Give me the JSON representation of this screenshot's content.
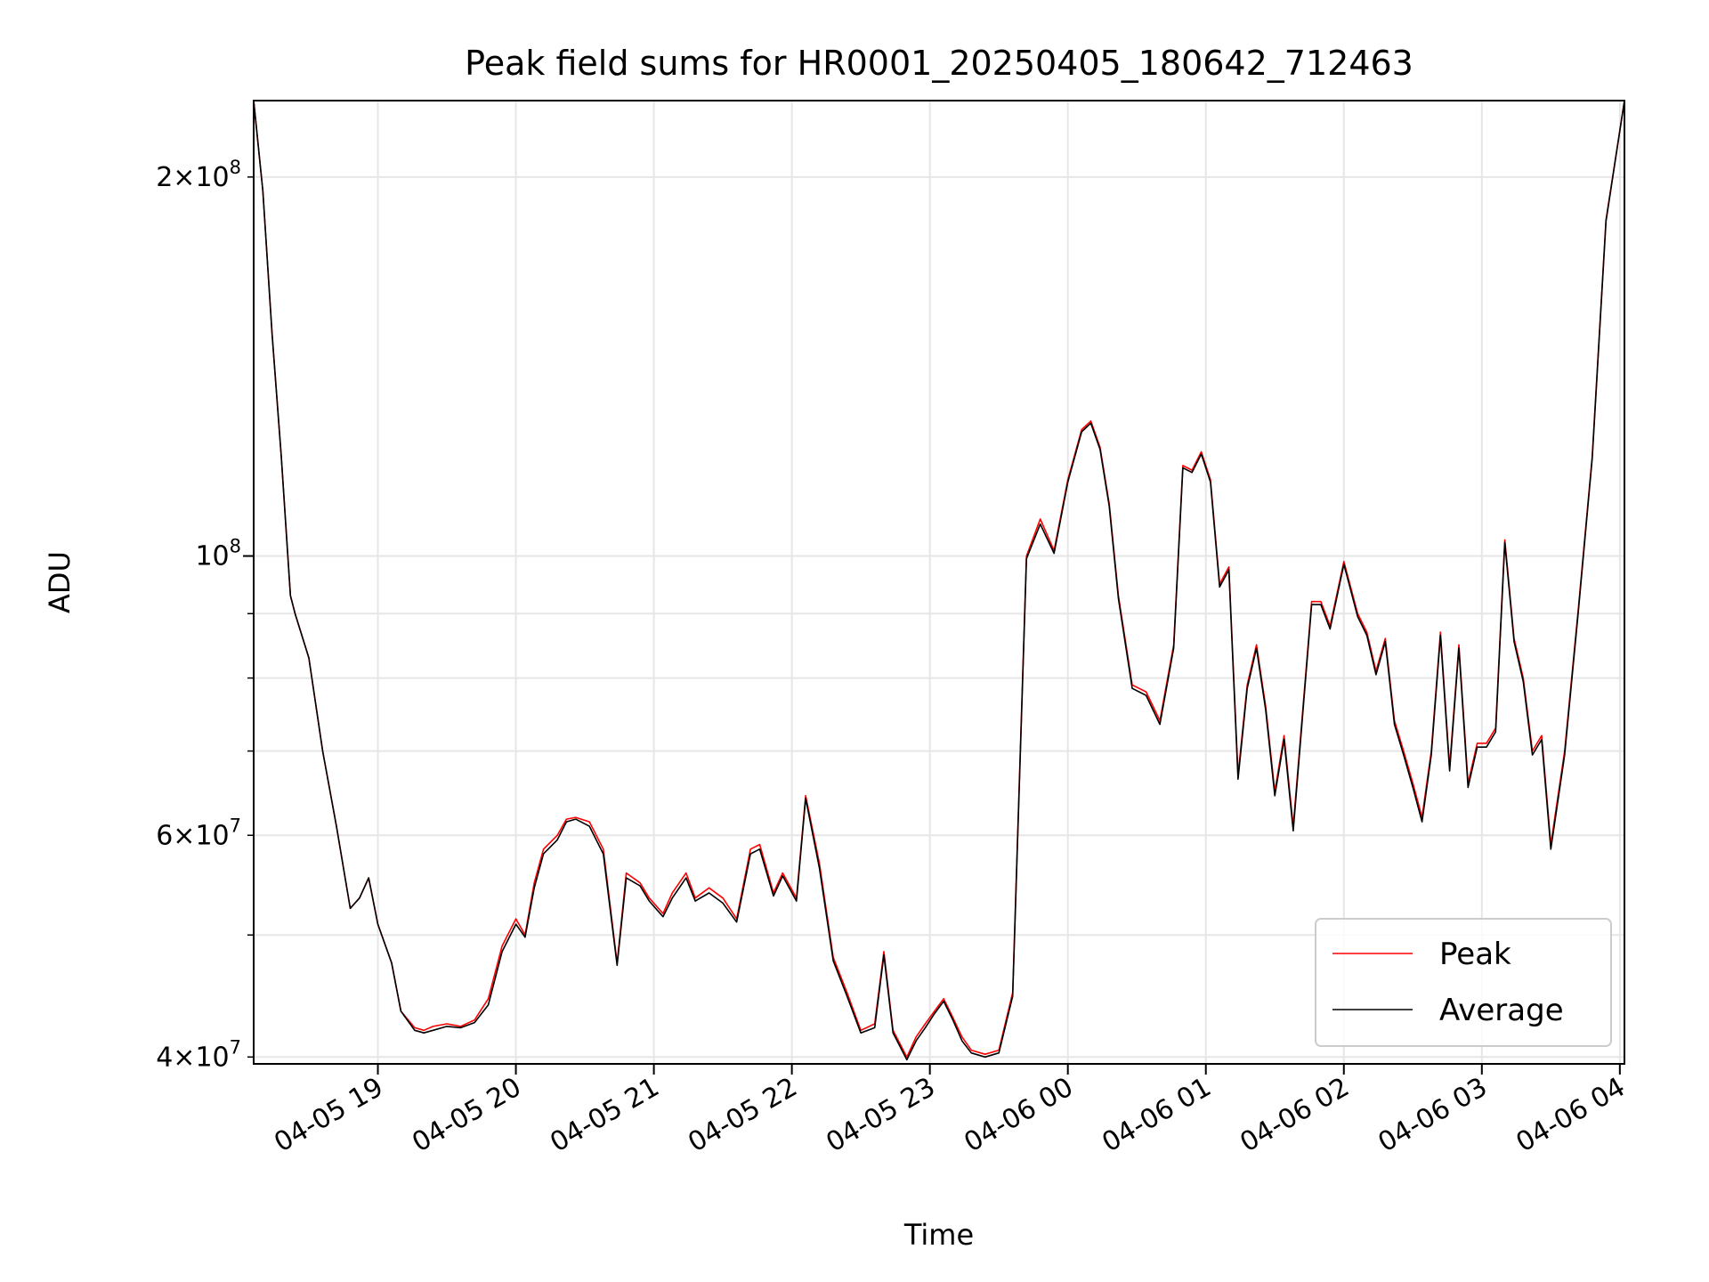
{
  "chart_data": {
    "type": "line",
    "title": "Peak field sums for HR0001_20250405_180642_712463",
    "xlabel": "Time",
    "ylabel": "ADU",
    "y_scale": "log",
    "ylim": [
      39500000,
      230000000
    ],
    "xlim": [
      "2025-04-05 18:06",
      "2025-04-06 04:02"
    ],
    "grid": true,
    "legend_position": "lower right",
    "x_ticks": [
      "04-05 19",
      "04-05 20",
      "04-05 21",
      "04-05 22",
      "04-05 23",
      "04-06 00",
      "04-06 01",
      "04-06 02",
      "04-06 03",
      "04-06 04"
    ],
    "y_ticks_major": [
      {
        "value": 100000000,
        "label_base": "10",
        "label_exp": "8"
      }
    ],
    "y_ticks_minor_labeled": [
      {
        "value": 40000000,
        "label_mant": "4",
        "label_base": "10",
        "label_exp": "7"
      },
      {
        "value": 60000000,
        "label_mant": "6",
        "label_base": "10",
        "label_exp": "7"
      },
      {
        "value": 200000000,
        "label_mant": "2",
        "label_base": "10",
        "label_exp": "8"
      }
    ],
    "y_ticks_minor_unlabeled": [
      50000000,
      70000000,
      80000000,
      90000000
    ],
    "series": [
      {
        "name": "Peak",
        "color": "#ff0000",
        "x": [
          "2025-04-05 18:06",
          "2025-04-05 18:10",
          "2025-04-05 18:14",
          "2025-04-05 18:18",
          "2025-04-05 18:22",
          "2025-04-05 18:24",
          "2025-04-05 18:30",
          "2025-04-05 18:36",
          "2025-04-05 18:42",
          "2025-04-05 18:48",
          "2025-04-05 18:52",
          "2025-04-05 18:56",
          "2025-04-05 19:00",
          "2025-04-05 19:06",
          "2025-04-05 19:10",
          "2025-04-05 19:16",
          "2025-04-05 19:20",
          "2025-04-05 19:24",
          "2025-04-05 19:30",
          "2025-04-05 19:36",
          "2025-04-05 19:42",
          "2025-04-05 19:48",
          "2025-04-05 19:54",
          "2025-04-05 20:00",
          "2025-04-05 20:04",
          "2025-04-05 20:08",
          "2025-04-05 20:12",
          "2025-04-05 20:18",
          "2025-04-05 20:22",
          "2025-04-05 20:26",
          "2025-04-05 20:32",
          "2025-04-05 20:38",
          "2025-04-05 20:44",
          "2025-04-05 20:48",
          "2025-04-05 20:54",
          "2025-04-05 20:58",
          "2025-04-05 21:04",
          "2025-04-05 21:08",
          "2025-04-05 21:14",
          "2025-04-05 21:18",
          "2025-04-05 21:24",
          "2025-04-05 21:30",
          "2025-04-05 21:36",
          "2025-04-05 21:42",
          "2025-04-05 21:46",
          "2025-04-05 21:52",
          "2025-04-05 21:56",
          "2025-04-05 22:02",
          "2025-04-05 22:06",
          "2025-04-05 22:12",
          "2025-04-05 22:18",
          "2025-04-05 22:24",
          "2025-04-05 22:30",
          "2025-04-05 22:36",
          "2025-04-05 22:40",
          "2025-04-05 22:44",
          "2025-04-05 22:50",
          "2025-04-05 22:54",
          "2025-04-05 22:58",
          "2025-04-05 23:02",
          "2025-04-05 23:06",
          "2025-04-05 23:10",
          "2025-04-05 23:14",
          "2025-04-05 23:18",
          "2025-04-05 23:24",
          "2025-04-05 23:30",
          "2025-04-05 23:36",
          "2025-04-05 23:42",
          "2025-04-05 23:48",
          "2025-04-05 23:54",
          "2025-04-06 00:00",
          "2025-04-06 00:06",
          "2025-04-06 00:10",
          "2025-04-06 00:14",
          "2025-04-06 00:18",
          "2025-04-06 00:22",
          "2025-04-06 00:28",
          "2025-04-06 00:34",
          "2025-04-06 00:40",
          "2025-04-06 00:46",
          "2025-04-06 00:50",
          "2025-04-06 00:54",
          "2025-04-06 00:58",
          "2025-04-06 01:02",
          "2025-04-06 01:06",
          "2025-04-06 01:10",
          "2025-04-06 01:14",
          "2025-04-06 01:18",
          "2025-04-06 01:22",
          "2025-04-06 01:26",
          "2025-04-06 01:30",
          "2025-04-06 01:34",
          "2025-04-06 01:38",
          "2025-04-06 01:42",
          "2025-04-06 01:46",
          "2025-04-06 01:50",
          "2025-04-06 01:54",
          "2025-04-06 02:00",
          "2025-04-06 02:06",
          "2025-04-06 02:10",
          "2025-04-06 02:14",
          "2025-04-06 02:18",
          "2025-04-06 02:22",
          "2025-04-06 02:26",
          "2025-04-06 02:30",
          "2025-04-06 02:34",
          "2025-04-06 02:38",
          "2025-04-06 02:42",
          "2025-04-06 02:46",
          "2025-04-06 02:50",
          "2025-04-06 02:54",
          "2025-04-06 02:58",
          "2025-04-06 03:02",
          "2025-04-06 03:06",
          "2025-04-06 03:10",
          "2025-04-06 03:14",
          "2025-04-06 03:18",
          "2025-04-06 03:22",
          "2025-04-06 03:26",
          "2025-04-06 03:30",
          "2025-04-06 03:36",
          "2025-04-06 03:42",
          "2025-04-06 03:48",
          "2025-04-06 03:54",
          "2025-04-06 04:02"
        ],
        "y": [
          230000000,
          195000000,
          150000000,
          120000000,
          93000000,
          90000000,
          83000000,
          70000000,
          61000000,
          52500000,
          53500000,
          55500000,
          51000000,
          47500000,
          43500000,
          42200000,
          42000000,
          42300000,
          42500000,
          42300000,
          42800000,
          44500000,
          49000000,
          51500000,
          50000000,
          55000000,
          58500000,
          60000000,
          61800000,
          62000000,
          61500000,
          58500000,
          47500000,
          56000000,
          55000000,
          53500000,
          52000000,
          54000000,
          56000000,
          53500000,
          54500000,
          53500000,
          51500000,
          58500000,
          59000000,
          54000000,
          56000000,
          53500000,
          64500000,
          57000000,
          48000000,
          45000000,
          42000000,
          42500000,
          48500000,
          42000000,
          40000000,
          41500000,
          42500000,
          43500000,
          44500000,
          43000000,
          41500000,
          40500000,
          40200000,
          40500000,
          45000000,
          100000000,
          107000000,
          101000000,
          115000000,
          126000000,
          128000000,
          122000000,
          110000000,
          93000000,
          79000000,
          78000000,
          74000000,
          85000000,
          118000000,
          117000000,
          121000000,
          115000000,
          95000000,
          98000000,
          67000000,
          79000000,
          85000000,
          76000000,
          65000000,
          72000000,
          61000000,
          75000000,
          92000000,
          92000000,
          88000000,
          99000000,
          90000000,
          87000000,
          81000000,
          86000000,
          74000000,
          70000000,
          66000000,
          62000000,
          70000000,
          87000000,
          68000000,
          85000000,
          66000000,
          71000000,
          71000000,
          73000000,
          103000000,
          86000000,
          80000000,
          70000000,
          72000000,
          59000000,
          70000000,
          91000000,
          120000000,
          185000000,
          230000000
        ]
      },
      {
        "name": "Average",
        "color": "#000000",
        "x": [
          "2025-04-05 18:06",
          "2025-04-05 18:10",
          "2025-04-05 18:14",
          "2025-04-05 18:18",
          "2025-04-05 18:22",
          "2025-04-05 18:24",
          "2025-04-05 18:30",
          "2025-04-05 18:36",
          "2025-04-05 18:42",
          "2025-04-05 18:48",
          "2025-04-05 18:52",
          "2025-04-05 18:56",
          "2025-04-05 19:00",
          "2025-04-05 19:06",
          "2025-04-05 19:10",
          "2025-04-05 19:16",
          "2025-04-05 19:20",
          "2025-04-05 19:24",
          "2025-04-05 19:30",
          "2025-04-05 19:36",
          "2025-04-05 19:42",
          "2025-04-05 19:48",
          "2025-04-05 19:54",
          "2025-04-05 20:00",
          "2025-04-05 20:04",
          "2025-04-05 20:08",
          "2025-04-05 20:12",
          "2025-04-05 20:18",
          "2025-04-05 20:22",
          "2025-04-05 20:26",
          "2025-04-05 20:32",
          "2025-04-05 20:38",
          "2025-04-05 20:44",
          "2025-04-05 20:48",
          "2025-04-05 20:54",
          "2025-04-05 20:58",
          "2025-04-05 21:04",
          "2025-04-05 21:08",
          "2025-04-05 21:14",
          "2025-04-05 21:18",
          "2025-04-05 21:24",
          "2025-04-05 21:30",
          "2025-04-05 21:36",
          "2025-04-05 21:42",
          "2025-04-05 21:46",
          "2025-04-05 21:52",
          "2025-04-05 21:56",
          "2025-04-05 22:02",
          "2025-04-05 22:06",
          "2025-04-05 22:12",
          "2025-04-05 22:18",
          "2025-04-05 22:24",
          "2025-04-05 22:30",
          "2025-04-05 22:36",
          "2025-04-05 22:40",
          "2025-04-05 22:44",
          "2025-04-05 22:50",
          "2025-04-05 22:54",
          "2025-04-05 22:58",
          "2025-04-05 23:02",
          "2025-04-05 23:06",
          "2025-04-05 23:10",
          "2025-04-05 23:14",
          "2025-04-05 23:18",
          "2025-04-05 23:24",
          "2025-04-05 23:30",
          "2025-04-05 23:36",
          "2025-04-05 23:42",
          "2025-04-05 23:48",
          "2025-04-05 23:54",
          "2025-04-06 00:00",
          "2025-04-06 00:06",
          "2025-04-06 00:10",
          "2025-04-06 00:14",
          "2025-04-06 00:18",
          "2025-04-06 00:22",
          "2025-04-06 00:28",
          "2025-04-06 00:34",
          "2025-04-06 00:40",
          "2025-04-06 00:46",
          "2025-04-06 00:50",
          "2025-04-06 00:54",
          "2025-04-06 00:58",
          "2025-04-06 01:02",
          "2025-04-06 01:06",
          "2025-04-06 01:10",
          "2025-04-06 01:14",
          "2025-04-06 01:18",
          "2025-04-06 01:22",
          "2025-04-06 01:26",
          "2025-04-06 01:30",
          "2025-04-06 01:34",
          "2025-04-06 01:38",
          "2025-04-06 01:42",
          "2025-04-06 01:46",
          "2025-04-06 01:50",
          "2025-04-06 01:54",
          "2025-04-06 02:00",
          "2025-04-06 02:06",
          "2025-04-06 02:10",
          "2025-04-06 02:14",
          "2025-04-06 02:18",
          "2025-04-06 02:22",
          "2025-04-06 02:26",
          "2025-04-06 02:30",
          "2025-04-06 02:34",
          "2025-04-06 02:38",
          "2025-04-06 02:42",
          "2025-04-06 02:46",
          "2025-04-06 02:50",
          "2025-04-06 02:54",
          "2025-04-06 02:58",
          "2025-04-06 03:02",
          "2025-04-06 03:06",
          "2025-04-06 03:10",
          "2025-04-06 03:14",
          "2025-04-06 03:18",
          "2025-04-06 03:22",
          "2025-04-06 03:26",
          "2025-04-06 03:30",
          "2025-04-06 03:36",
          "2025-04-06 03:42",
          "2025-04-06 03:48",
          "2025-04-06 03:54",
          "2025-04-06 04:02"
        ],
        "y": [
          230000000,
          195000000,
          150000000,
          120000000,
          93000000,
          90000000,
          83000000,
          70000000,
          61000000,
          52500000,
          53500000,
          55500000,
          51000000,
          47500000,
          43500000,
          42000000,
          41800000,
          42000000,
          42300000,
          42200000,
          42600000,
          44000000,
          48500000,
          51000000,
          49800000,
          54500000,
          58000000,
          59500000,
          61500000,
          61800000,
          61000000,
          58000000,
          47300000,
          55500000,
          54700000,
          53200000,
          51700000,
          53500000,
          55500000,
          53200000,
          54000000,
          53000000,
          51200000,
          58000000,
          58500000,
          53700000,
          55700000,
          53200000,
          64200000,
          56500000,
          47700000,
          44700000,
          41800000,
          42200000,
          48200000,
          41800000,
          39800000,
          41200000,
          42200000,
          43300000,
          44300000,
          42800000,
          41200000,
          40300000,
          40000000,
          40300000,
          44700000,
          99500000,
          106000000,
          100500000,
          114500000,
          125500000,
          127500000,
          121500000,
          109500000,
          92500000,
          78500000,
          77500000,
          73500000,
          84500000,
          117500000,
          116500000,
          120500000,
          114500000,
          94500000,
          97500000,
          66500000,
          78500000,
          84500000,
          75500000,
          64500000,
          71500000,
          60500000,
          74500000,
          91500000,
          91500000,
          87500000,
          98500000,
          89500000,
          86500000,
          80500000,
          85500000,
          73500000,
          69500000,
          65500000,
          61500000,
          69500000,
          86500000,
          67500000,
          84500000,
          65500000,
          70500000,
          70500000,
          72500000,
          102500000,
          85500000,
          79500000,
          69500000,
          71500000,
          58500000,
          69500000,
          90500000,
          119500000,
          184500000,
          230000000
        ]
      }
    ]
  }
}
